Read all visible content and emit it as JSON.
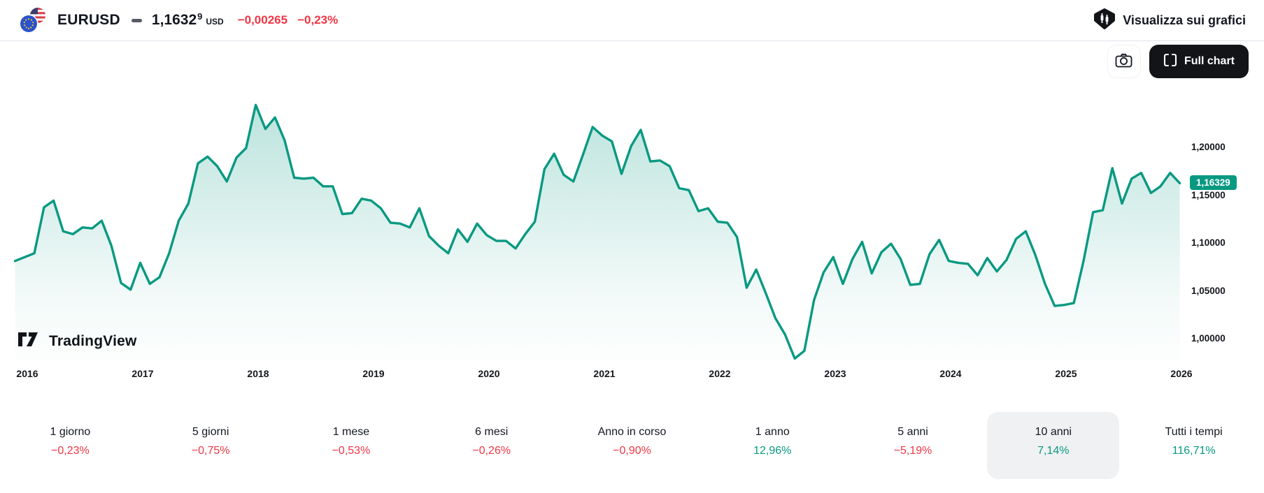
{
  "header": {
    "symbol": "EURUSD",
    "price": "1,1632",
    "price_sup": "9",
    "currency": "USD",
    "change": "−0,00265",
    "change_pct": "−0,23%",
    "link_label": "Visualizza sui grafici"
  },
  "toolbar": {
    "full_chart_label": "Full chart"
  },
  "watermark_text": "TradingView",
  "colors": {
    "up": "#089981",
    "down": "#f23645",
    "text": "#131722",
    "badge_bg": "#089981"
  },
  "chart_data": {
    "type": "area",
    "title": "EURUSD 10 year price chart",
    "x_interval": "monthly",
    "x_start": "2015-12",
    "x_tick_labels": [
      "2016",
      "2017",
      "2018",
      "2019",
      "2020",
      "2021",
      "2022",
      "2023",
      "2024",
      "2025",
      "2026"
    ],
    "y_tick_labels": [
      "1,20000",
      "1,15000",
      "1,10000",
      "1,05000",
      "1,00000"
    ],
    "y_tick_values": [
      1.2,
      1.15,
      1.1,
      1.05,
      1.0
    ],
    "ylim": [
      0.96,
      1.26
    ],
    "current_price": 1.16329,
    "current_price_label": "1,16329",
    "legend": "none",
    "grid": "off",
    "values": [
      1.082,
      1.086,
      1.09,
      1.138,
      1.145,
      1.113,
      1.11,
      1.117,
      1.116,
      1.124,
      1.098,
      1.059,
      1.052,
      1.08,
      1.058,
      1.065,
      1.09,
      1.124,
      1.142,
      1.184,
      1.191,
      1.181,
      1.165,
      1.19,
      1.2,
      1.245,
      1.22,
      1.232,
      1.208,
      1.169,
      1.168,
      1.169,
      1.16,
      1.16,
      1.131,
      1.132,
      1.147,
      1.145,
      1.137,
      1.122,
      1.121,
      1.117,
      1.137,
      1.108,
      1.098,
      1.09,
      1.115,
      1.102,
      1.121,
      1.109,
      1.103,
      1.103,
      1.095,
      1.11,
      1.123,
      1.178,
      1.194,
      1.172,
      1.165,
      1.193,
      1.222,
      1.213,
      1.207,
      1.173,
      1.202,
      1.219,
      1.186,
      1.187,
      1.181,
      1.158,
      1.156,
      1.134,
      1.137,
      1.123,
      1.122,
      1.107,
      1.054,
      1.073,
      1.048,
      1.022,
      1.005,
      0.98,
      0.988,
      1.041,
      1.07,
      1.086,
      1.058,
      1.084,
      1.102,
      1.069,
      1.091,
      1.1,
      1.084,
      1.057,
      1.058,
      1.089,
      1.104,
      1.082,
      1.08,
      1.079,
      1.067,
      1.085,
      1.071,
      1.083,
      1.105,
      1.113,
      1.088,
      1.058,
      1.035,
      1.036,
      1.038,
      1.082,
      1.133,
      1.135,
      1.179,
      1.142,
      1.168,
      1.174,
      1.153,
      1.16,
      1.174,
      1.16329
    ]
  },
  "stats": {
    "items": [
      {
        "label": "1 giorno",
        "value": "−0,23%",
        "direction": "down",
        "active": false
      },
      {
        "label": "5 giorni",
        "value": "−0,75%",
        "direction": "down",
        "active": false
      },
      {
        "label": "1 mese",
        "value": "−0,53%",
        "direction": "down",
        "active": false
      },
      {
        "label": "6 mesi",
        "value": "−0,26%",
        "direction": "down",
        "active": false
      },
      {
        "label": "Anno in corso",
        "value": "−0,90%",
        "direction": "down",
        "active": false
      },
      {
        "label": "1 anno",
        "value": "12,96%",
        "direction": "up",
        "active": false
      },
      {
        "label": "5 anni",
        "value": "−5,19%",
        "direction": "down",
        "active": false
      },
      {
        "label": "10 anni",
        "value": "7,14%",
        "direction": "up",
        "active": true
      },
      {
        "label": "Tutti i tempi",
        "value": "116,71%",
        "direction": "up",
        "active": false
      }
    ]
  }
}
